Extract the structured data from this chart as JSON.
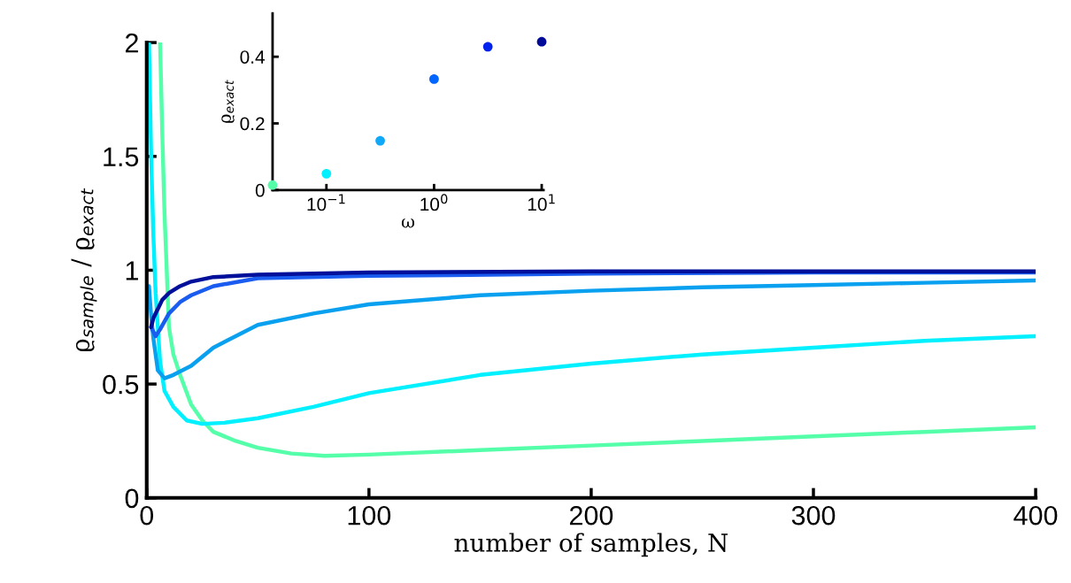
{
  "chart_data": [
    {
      "type": "line",
      "xlabel": "number of samples, N",
      "ylabel": "ϱ$_{sample}$ / ϱ$_{exact}$",
      "xlim": [
        0,
        400
      ],
      "xticks": [
        0,
        100,
        200,
        300,
        400
      ],
      "ylim": [
        0,
        2
      ],
      "yticks": [
        0,
        {
          "value": 0.5,
          "label": "0.5"
        },
        1,
        {
          "value": 1.5,
          "label": "1.5"
        },
        2
      ],
      "grid": false,
      "marker": "none",
      "line_style": "solid",
      "series": [
        {
          "color": "#55ffaa",
          "x": [
            6,
            7,
            8,
            10,
            12,
            15,
            20,
            25,
            30,
            40,
            50,
            65,
            80,
            100,
            150,
            200,
            250,
            300,
            350,
            400
          ],
          "values": [
            2.0,
            1.6,
            1.25,
            0.75,
            0.63,
            0.54,
            0.41,
            0.34,
            0.29,
            0.25,
            0.22,
            0.195,
            0.185,
            0.19,
            0.21,
            0.23,
            0.25,
            0.27,
            0.29,
            0.31
          ]
        },
        {
          "color": "#00f0ff",
          "x": [
            1,
            2,
            3,
            4,
            6,
            8,
            12,
            18,
            25,
            35,
            50,
            75,
            100,
            150,
            200,
            250,
            300,
            350,
            400
          ],
          "values": [
            2.0,
            1.5,
            1.15,
            0.9,
            0.6,
            0.47,
            0.4,
            0.34,
            0.325,
            0.33,
            0.35,
            0.4,
            0.46,
            0.54,
            0.59,
            0.63,
            0.66,
            0.69,
            0.71
          ]
        },
        {
          "color": "#0aa0f0",
          "x": [
            1,
            2,
            3,
            5,
            8,
            12,
            20,
            30,
            50,
            75,
            100,
            150,
            200,
            250,
            300,
            350,
            400
          ],
          "values": [
            0.93,
            0.8,
            0.7,
            0.56,
            0.525,
            0.54,
            0.58,
            0.66,
            0.76,
            0.81,
            0.85,
            0.89,
            0.91,
            0.925,
            0.935,
            0.945,
            0.955
          ]
        },
        {
          "color": "#1a5cf0",
          "x": [
            2,
            4,
            6,
            10,
            15,
            20,
            30,
            50,
            100,
            200,
            300,
            400
          ],
          "values": [
            0.75,
            0.71,
            0.74,
            0.81,
            0.86,
            0.89,
            0.93,
            0.965,
            0.975,
            0.985,
            0.99,
            0.99
          ]
        },
        {
          "color": "#00109a",
          "x": [
            2,
            3,
            5,
            7,
            10,
            15,
            20,
            30,
            50,
            100,
            200,
            300,
            400
          ],
          "values": [
            0.75,
            0.79,
            0.83,
            0.87,
            0.9,
            0.93,
            0.95,
            0.97,
            0.98,
            0.99,
            0.995,
            0.995,
            0.995
          ]
        }
      ]
    },
    {
      "type": "scatter",
      "xlabel": "ω",
      "ylabel": "ϱ$_{exact}$",
      "log": "x",
      "xlim": [
        0.0316,
        10.4
      ],
      "xticks": [
        {
          "value": 0.1,
          "label": "10$^{−1}$"
        },
        {
          "value": 1,
          "label": "10$^{0}$"
        },
        {
          "value": 10,
          "label": "10$^{1}$"
        }
      ],
      "ylim": [
        0,
        0.53
      ],
      "yticks": [
        0,
        {
          "value": 0.2,
          "label": "0.2"
        },
        {
          "value": 0.4,
          "label": "0.4"
        }
      ],
      "grid": false,
      "marker": "circle",
      "x": [
        0.0316,
        0.1,
        0.316,
        1,
        3.16,
        10
      ],
      "values": [
        0.015,
        0.049,
        0.148,
        0.333,
        0.43,
        0.445
      ],
      "colors": [
        "#55ffaa",
        "#00f0ff",
        "#10a8f8",
        "#0066ff",
        "#0022ee",
        "#000a99"
      ]
    }
  ]
}
